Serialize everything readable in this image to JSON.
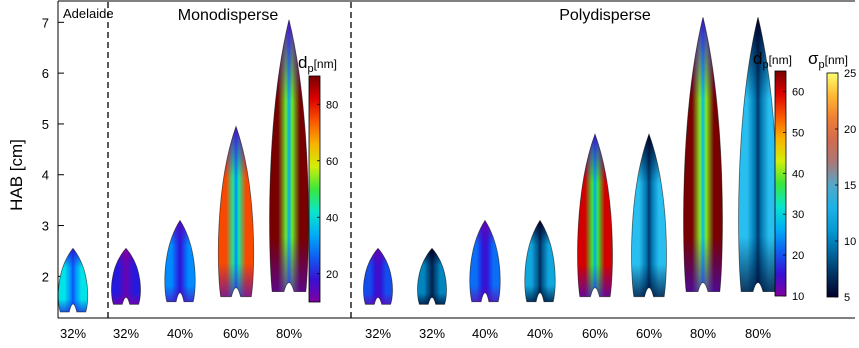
{
  "chart_data": {
    "type": "heatmap",
    "ylabel": "HAB [cm]",
    "ylim": [
      1.2,
      7.4
    ],
    "yticks": [
      2,
      3,
      4,
      5,
      6,
      7
    ],
    "grid": false,
    "sections": [
      {
        "label": "Adelaide",
        "flames": [
          0
        ]
      },
      {
        "label": "Monodisperse",
        "flames": [
          1,
          2,
          3,
          4
        ]
      },
      {
        "label": "Polydisperse",
        "flames": [
          5,
          6,
          7,
          8,
          9,
          10,
          11,
          12
        ]
      }
    ],
    "flames": [
      {
        "category": "32%",
        "quantity": "dp",
        "hab_min": 1.3,
        "hab_max": 2.55,
        "min_nm": 20,
        "max_nm": 40
      },
      {
        "category": "32%",
        "quantity": "dp",
        "hab_min": 1.45,
        "hab_max": 2.55,
        "min_nm": 10,
        "max_nm": 20
      },
      {
        "category": "40%",
        "quantity": "dp",
        "hab_min": 1.5,
        "hab_max": 3.1,
        "min_nm": 15,
        "max_nm": 30
      },
      {
        "category": "60%",
        "quantity": "dp",
        "hab_min": 1.6,
        "hab_max": 4.95,
        "min_nm": 15,
        "max_nm": 75
      },
      {
        "category": "80%",
        "quantity": "dp",
        "hab_min": 1.7,
        "hab_max": 7.05,
        "min_nm": 15,
        "max_nm": 90
      },
      {
        "category": "32%",
        "quantity": "dp",
        "hab_min": 1.45,
        "hab_max": 2.55,
        "min_nm": 12,
        "max_nm": 20
      },
      {
        "category": "32%",
        "quantity": "sigma",
        "hab_min": 1.45,
        "hab_max": 2.55,
        "min_nm": 5,
        "max_nm": 10
      },
      {
        "category": "40%",
        "quantity": "dp",
        "hab_min": 1.5,
        "hab_max": 3.1,
        "min_nm": 12,
        "max_nm": 22
      },
      {
        "category": "40%",
        "quantity": "sigma",
        "hab_min": 1.5,
        "hab_max": 3.1,
        "min_nm": 5,
        "max_nm": 12
      },
      {
        "category": "60%",
        "quantity": "dp",
        "hab_min": 1.6,
        "hab_max": 4.8,
        "min_nm": 15,
        "max_nm": 60
      },
      {
        "category": "60%",
        "quantity": "sigma",
        "hab_min": 1.6,
        "hab_max": 4.8,
        "min_nm": 5,
        "max_nm": 14
      },
      {
        "category": "80%",
        "quantity": "dp",
        "hab_min": 1.7,
        "hab_max": 7.1,
        "min_nm": 15,
        "max_nm": 65
      },
      {
        "category": "80%",
        "quantity": "sigma",
        "hab_min": 1.7,
        "hab_max": 7.1,
        "min_nm": 5,
        "max_nm": 14
      }
    ],
    "colorbars": [
      {
        "label_main": "d",
        "label_sub": "p",
        "label_unit": "[nm]",
        "min": 10,
        "max": 90,
        "ticks": [
          20,
          40,
          60,
          80
        ],
        "colormap": "jet"
      },
      {
        "label_main": "d",
        "label_sub": "p",
        "label_unit": "[nm]",
        "min": 10,
        "max": 65,
        "ticks": [
          10,
          20,
          30,
          40,
          50,
          60
        ],
        "colormap": "jet"
      },
      {
        "label_main": "σ",
        "label_sub": "p",
        "label_unit": "[nm]",
        "min": 5,
        "max": 25,
        "ticks": [
          5,
          10,
          15,
          20,
          25
        ],
        "colormap": "cool-to-yellow"
      }
    ],
    "colors": {
      "dashed_divider": "#000000",
      "flame_outline": "#000000"
    }
  }
}
